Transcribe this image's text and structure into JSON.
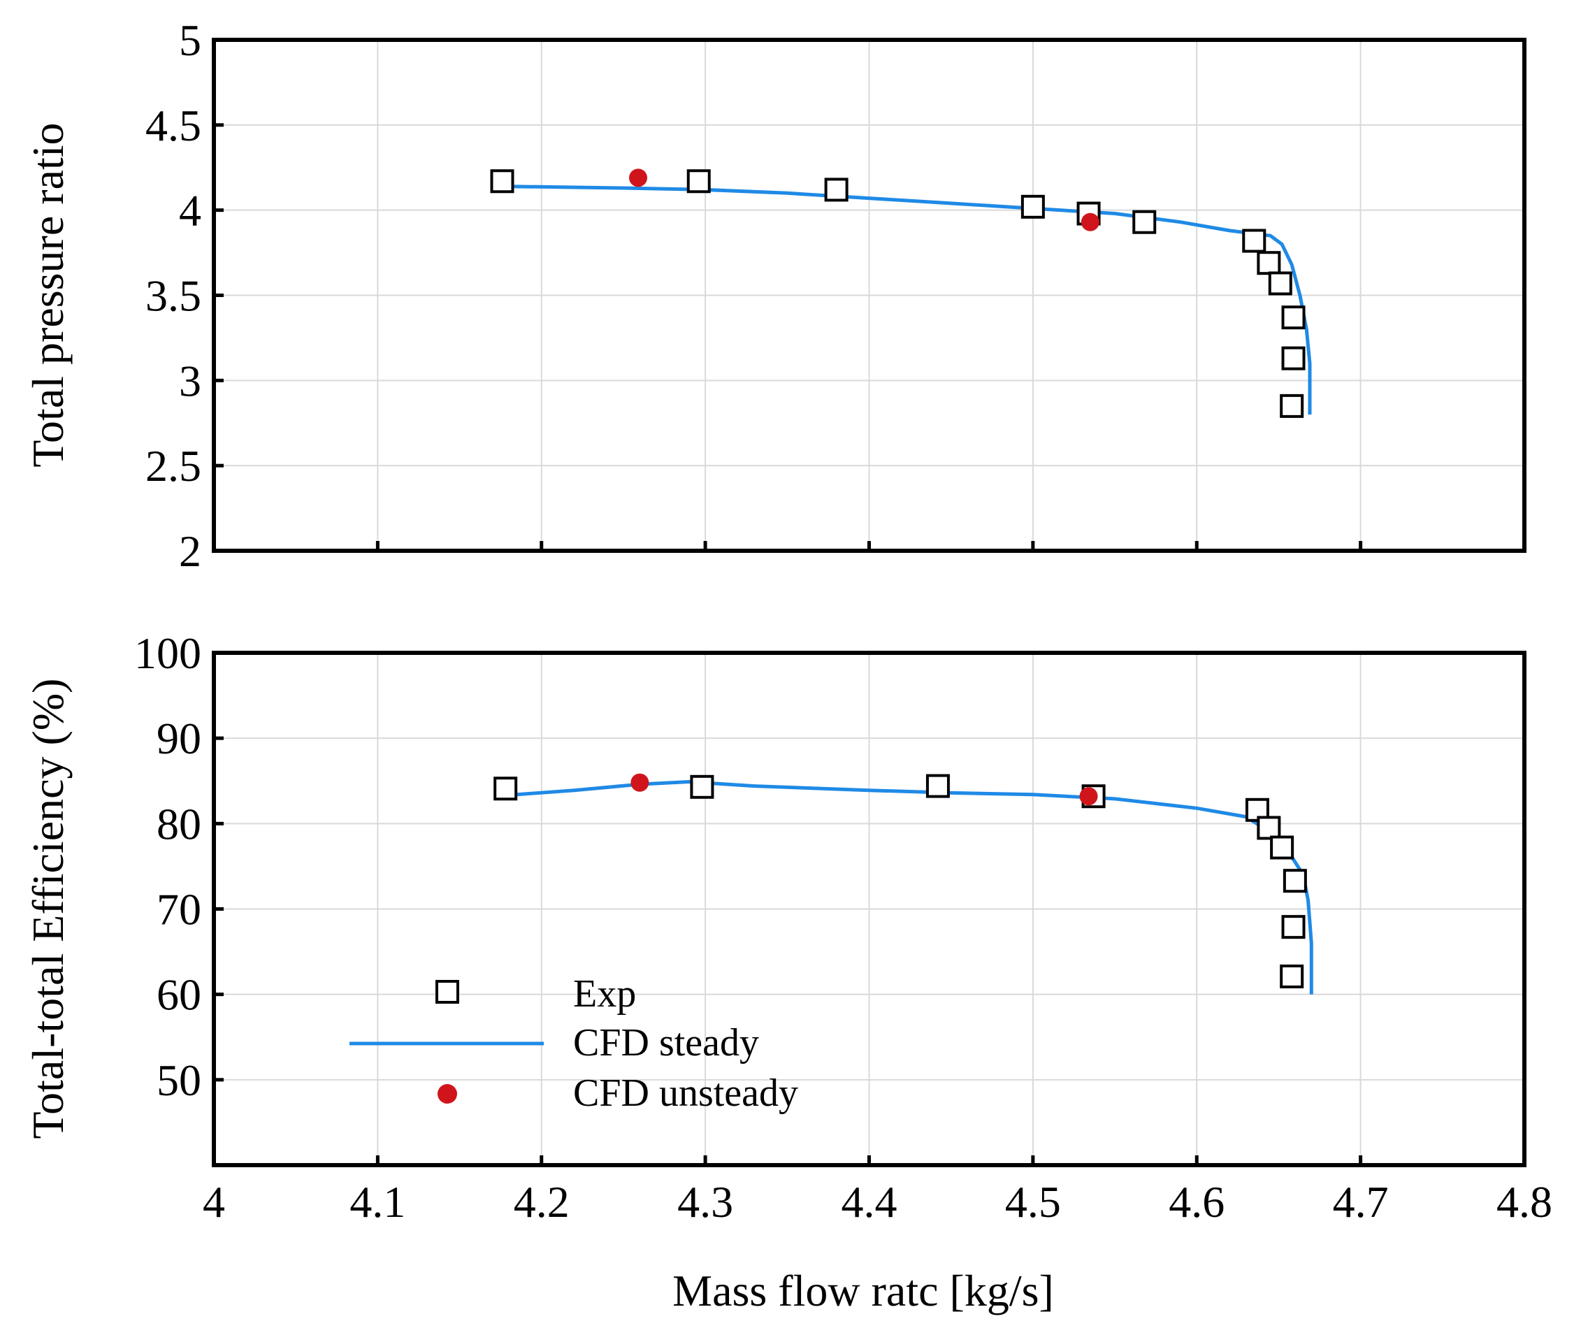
{
  "chart_data": [
    {
      "type": "scatter",
      "panel": "top",
      "title": "",
      "xlabel": "",
      "ylabel": "Total pressure ratio",
      "xlim": [
        4,
        4.8
      ],
      "ylim": [
        2,
        5
      ],
      "x_ticks": [
        4,
        4.1,
        4.2,
        4.3,
        4.4,
        4.5,
        4.6,
        4.7,
        4.8
      ],
      "y_ticks": [
        2,
        2.5,
        3,
        3.5,
        4,
        4.5,
        5
      ],
      "y_tick_labels": [
        "2",
        "2.5",
        "3",
        "3.5",
        "4",
        "4.5",
        "5"
      ],
      "grid": true,
      "series": [
        {
          "name": "Exp",
          "kind": "marker-square",
          "points": [
            [
              4.176,
              4.17
            ],
            [
              4.296,
              4.17
            ],
            [
              4.38,
              4.12
            ],
            [
              4.5,
              4.02
            ],
            [
              4.534,
              3.98
            ],
            [
              4.568,
              3.93
            ],
            [
              4.635,
              3.82
            ],
            [
              4.644,
              3.69
            ],
            [
              4.651,
              3.57
            ],
            [
              4.659,
              3.37
            ],
            [
              4.659,
              3.13
            ],
            [
              4.658,
              2.85
            ]
          ]
        },
        {
          "name": "CFD steady",
          "kind": "line",
          "points": [
            [
              4.177,
              4.14
            ],
            [
              4.25,
              4.13
            ],
            [
              4.3,
              4.12
            ],
            [
              4.35,
              4.1
            ],
            [
              4.4,
              4.07
            ],
            [
              4.45,
              4.04
            ],
            [
              4.5,
              4.01
            ],
            [
              4.55,
              3.98
            ],
            [
              4.59,
              3.93
            ],
            [
              4.62,
              3.88
            ],
            [
              4.645,
              3.85
            ],
            [
              4.652,
              3.8
            ],
            [
              4.658,
              3.68
            ],
            [
              4.663,
              3.5
            ],
            [
              4.667,
              3.3
            ],
            [
              4.669,
              3.1
            ],
            [
              4.669,
              2.8
            ]
          ]
        },
        {
          "name": "CFD unsteady",
          "kind": "marker-dot",
          "points": [
            [
              4.259,
              4.19
            ],
            [
              4.535,
              3.93
            ]
          ]
        }
      ]
    },
    {
      "type": "scatter",
      "panel": "bottom",
      "title": "",
      "xlabel": "Mass flow ratc [kg/s]",
      "ylabel": "Total-total Efficiency (%)",
      "xlim": [
        4,
        4.8
      ],
      "ylim": [
        40,
        100
      ],
      "x_ticks": [
        4,
        4.1,
        4.2,
        4.3,
        4.4,
        4.5,
        4.6,
        4.7,
        4.8
      ],
      "x_tick_labels": [
        "4",
        "4.1",
        "4.2",
        "4.3",
        "4.4",
        "4.5",
        "4.6",
        "4.7",
        "4.8"
      ],
      "y_ticks": [
        50,
        60,
        70,
        80,
        90,
        100
      ],
      "y_tick_labels": [
        "50",
        "60",
        "70",
        "80",
        "90",
        "100"
      ],
      "grid": true,
      "legend": "lower-left",
      "series": [
        {
          "name": "Exp",
          "kind": "marker-square",
          "points": [
            [
              4.178,
              84.1
            ],
            [
              4.298,
              84.3
            ],
            [
              4.442,
              84.4
            ],
            [
              4.537,
              83.2
            ],
            [
              4.637,
              81.6
            ],
            [
              4.644,
              79.5
            ],
            [
              4.652,
              77.2
            ],
            [
              4.66,
              73.3
            ],
            [
              4.659,
              67.9
            ],
            [
              4.658,
              62.1
            ]
          ]
        },
        {
          "name": "CFD steady",
          "kind": "line",
          "points": [
            [
              4.178,
              83.3
            ],
            [
              4.22,
              83.9
            ],
            [
              4.26,
              84.6
            ],
            [
              4.29,
              84.9
            ],
            [
              4.33,
              84.4
            ],
            [
              4.4,
              83.9
            ],
            [
              4.45,
              83.6
            ],
            [
              4.5,
              83.4
            ],
            [
              4.55,
              82.9
            ],
            [
              4.6,
              81.8
            ],
            [
              4.63,
              80.8
            ],
            [
              4.645,
              79
            ],
            [
              4.655,
              77
            ],
            [
              4.665,
              74
            ],
            [
              4.668,
              71
            ],
            [
              4.67,
              66
            ],
            [
              4.67,
              60
            ]
          ]
        },
        {
          "name": "CFD unsteady",
          "kind": "marker-dot",
          "points": [
            [
              4.26,
              84.8
            ],
            [
              4.534,
              83.2
            ]
          ]
        }
      ]
    }
  ],
  "legend": {
    "items": [
      {
        "label": "Exp",
        "kind": "marker-square"
      },
      {
        "label": "CFD steady",
        "kind": "line"
      },
      {
        "label": "CFD unsteady",
        "kind": "marker-dot"
      }
    ]
  },
  "colors": {
    "steady_line": "#1f8ae6",
    "unsteady_marker": "#d0141b",
    "grid": "#d9d9d9",
    "frame": "#000000"
  }
}
